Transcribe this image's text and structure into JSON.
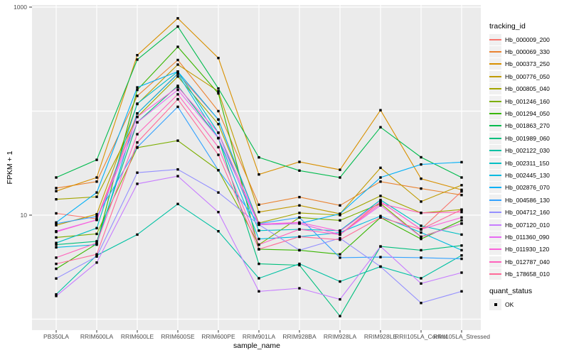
{
  "figure": {
    "background": "#FFFFFF",
    "panel_bg": "#EBEBEB",
    "grid_color": "#FFFFFF",
    "tick_color": "#333333",
    "tick_label_color": "#4D4D4D",
    "point_color": "#000000"
  },
  "chart_data": {
    "type": "line",
    "title": "",
    "xlabel": "sample_name",
    "ylabel": "FPKM + 1",
    "y_scale": "log10",
    "ylim": [
      0.78,
      1070
    ],
    "y_tick_labels": [
      "10",
      "1000"
    ],
    "y_tick_values": [
      10,
      1000
    ],
    "y_grid_values": [
      1,
      10,
      100,
      1000
    ],
    "grid": "major",
    "legend_position": "right",
    "legend_title": "tracking_id",
    "legend2_title": "quant_status",
    "legend2_items": [
      "OK"
    ],
    "categories": [
      "PB350LA",
      "RRIM600LA",
      "RRIM600LE",
      "RRIM600SE",
      "RRIM600PE",
      "RRIM901LA",
      "RRIM928BA",
      "RRIM928LA",
      "RRIM928LE",
      "RRII105LA_Control",
      "RRII105LA_Stressed"
    ],
    "series": [
      {
        "name": "Hb_000009_200",
        "color": "#F8766D",
        "values": [
          10.4,
          9.2,
          95,
          230,
          83,
          8.2,
          8.3,
          6.5,
          13.5,
          7.3,
          16.9
        ]
      },
      {
        "name": "Hb_000069_330",
        "color": "#EA8331",
        "values": [
          18.2,
          21,
          140,
          310,
          100,
          12.6,
          14.9,
          12.4,
          21,
          18.0,
          15.6
        ]
      },
      {
        "name": "Hb_000373_250",
        "color": "#D89000",
        "values": [
          17,
          23,
          345,
          780,
          324,
          24.6,
          32.5,
          27.3,
          102,
          22.4,
          17.5
        ]
      },
      {
        "name": "Hb_000776_050",
        "color": "#C09B00",
        "values": [
          8.0,
          10.2,
          117,
          280,
          155,
          10.7,
          12.4,
          10.3,
          28.5,
          13.5,
          19.4
        ]
      },
      {
        "name": "Hb_000805_040",
        "color": "#A3A500",
        "values": [
          14.2,
          15.0,
          88,
          215,
          75,
          8.4,
          10.5,
          10.0,
          15.3,
          10.5,
          11.3
        ]
      },
      {
        "name": "Hb_001246_160",
        "color": "#7CAE00",
        "values": [
          6.1,
          6.6,
          44.5,
          52,
          27,
          5.2,
          9.5,
          8.9,
          12.9,
          6.2,
          8.3
        ]
      },
      {
        "name": "Hb_001294_050",
        "color": "#39B600",
        "values": [
          3.05,
          5.3,
          160,
          415,
          148,
          4.7,
          4.6,
          4.2,
          9.5,
          5.9,
          8.9
        ]
      },
      {
        "name": "Hb_001863_270",
        "color": "#00BB4E",
        "values": [
          23,
          34,
          313,
          650,
          165,
          35.9,
          26.8,
          23,
          70,
          36,
          23
        ]
      },
      {
        "name": "Hb_001989_060",
        "color": "#00BF7D",
        "values": [
          5.2,
          5.6,
          78,
          175,
          55,
          3.4,
          3.3,
          1.07,
          5.0,
          4.6,
          5.1
        ]
      },
      {
        "name": "Hb_002122_030",
        "color": "#00C1A3",
        "values": [
          1.73,
          4.1,
          6.5,
          12.8,
          7.0,
          2.47,
          3.4,
          2.3,
          3.2,
          2.47,
          4.1
        ]
      },
      {
        "name": "Hb_002311_150",
        "color": "#00BFC4",
        "values": [
          5.4,
          7.5,
          118,
          240,
          62,
          7.1,
          7.3,
          7.1,
          14,
          7.9,
          6.5
        ]
      },
      {
        "name": "Hb_002445_130",
        "color": "#00BAE0",
        "values": [
          4.9,
          5.2,
          95,
          228,
          55,
          5.9,
          6.2,
          6.8,
          9.8,
          6.8,
          4.6
        ]
      },
      {
        "name": "Hb_002876_070",
        "color": "#00B0F6",
        "values": [
          8.5,
          16.5,
          169,
          240,
          83,
          8.1,
          8.3,
          10.3,
          23,
          30.7,
          32.3
        ]
      },
      {
        "name": "Hb_004586_130",
        "color": "#35A2FF",
        "values": [
          8.3,
          9.7,
          45,
          110,
          27,
          8.3,
          9.5,
          3.9,
          3.95,
          3.9,
          3.8
        ]
      },
      {
        "name": "Hb_004712_160",
        "color": "#9590FF",
        "values": [
          2.46,
          4.0,
          25.6,
          27.5,
          16.5,
          8.1,
          4.6,
          6.0,
          3.2,
          1.43,
          1.85
        ]
      },
      {
        "name": "Hb_007120_010",
        "color": "#C77CFF",
        "values": [
          1.67,
          3.5,
          20,
          23.7,
          10.7,
          1.85,
          1.98,
          1.55,
          5.0,
          2.2,
          2.8
        ]
      },
      {
        "name": "Hb_011360_090",
        "color": "#E76BF3",
        "values": [
          7.0,
          9.0,
          78,
          160,
          55,
          8.1,
          8.3,
          6.5,
          12.4,
          6.15,
          8.3
        ]
      },
      {
        "name": "Hb_011930_120",
        "color": "#FA62DB",
        "values": [
          6.9,
          9.0,
          88,
          170,
          62,
          8.2,
          8.5,
          7.0,
          13.5,
          7.3,
          9.5
        ]
      },
      {
        "name": "Hb_012787_040",
        "color": "#FF62BC",
        "values": [
          3.9,
          5.4,
          60,
          145,
          45,
          5.2,
          7.3,
          6.5,
          12.9,
          10.5,
          10.7
        ]
      },
      {
        "name": "Hb_178658_010",
        "color": "#FF6A98",
        "values": [
          3.4,
          4.2,
          50,
          130,
          38,
          4.7,
          6.2,
          5.8,
          9.5,
          7.3,
          11.3
        ]
      }
    ]
  }
}
